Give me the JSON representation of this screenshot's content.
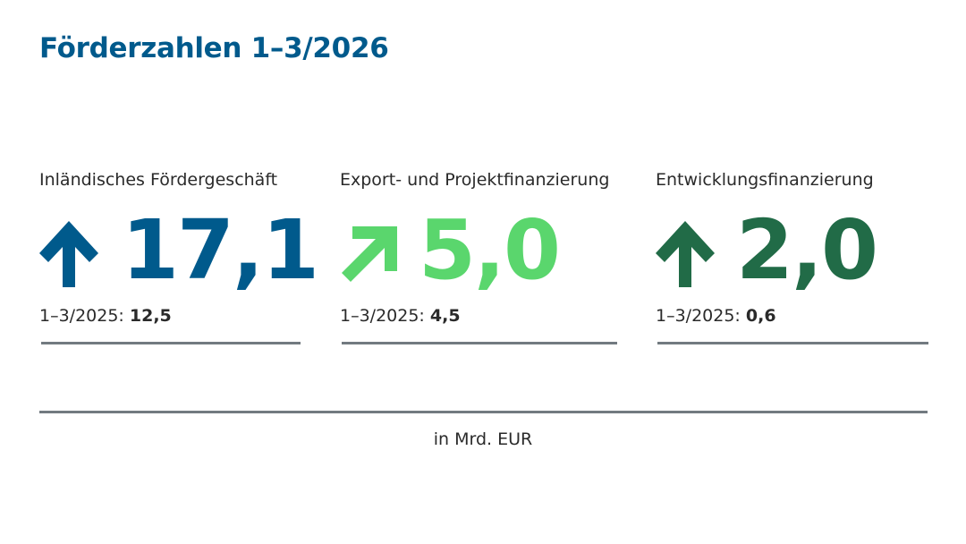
{
  "title": "Förderzahlen 1–3/2026",
  "unit_label": "in Mrd. EUR",
  "colors": {
    "title": "#005a8c",
    "rule": "#727a80",
    "text": "#2a2a2a"
  },
  "chart_data": {
    "type": "table",
    "title": "Förderzahlen 1–3/2026",
    "unit": "in Mrd. EUR",
    "series": [
      {
        "name": "Inländisches Fördergeschäft",
        "value": "17,1",
        "value_num": 17.1,
        "prev_label": "1–3/2025:",
        "prev_value": "12,5",
        "prev_num": 12.5,
        "trend_icon": "arrow-up-icon",
        "color": "#005a8c"
      },
      {
        "name": "Export- und Projektfinanzierung",
        "value": "5,0",
        "value_num": 5.0,
        "prev_label": "1–3/2025:",
        "prev_value": "4,5",
        "prev_num": 4.5,
        "trend_icon": "arrow-up-right-icon",
        "color": "#5ad66d"
      },
      {
        "name": "Entwicklungsfinanzierung",
        "value": "2,0",
        "value_num": 2.0,
        "prev_label": "1–3/2025:",
        "prev_value": "0,6",
        "prev_num": 0.6,
        "trend_icon": "arrow-up-icon",
        "color": "#216b47"
      }
    ]
  }
}
